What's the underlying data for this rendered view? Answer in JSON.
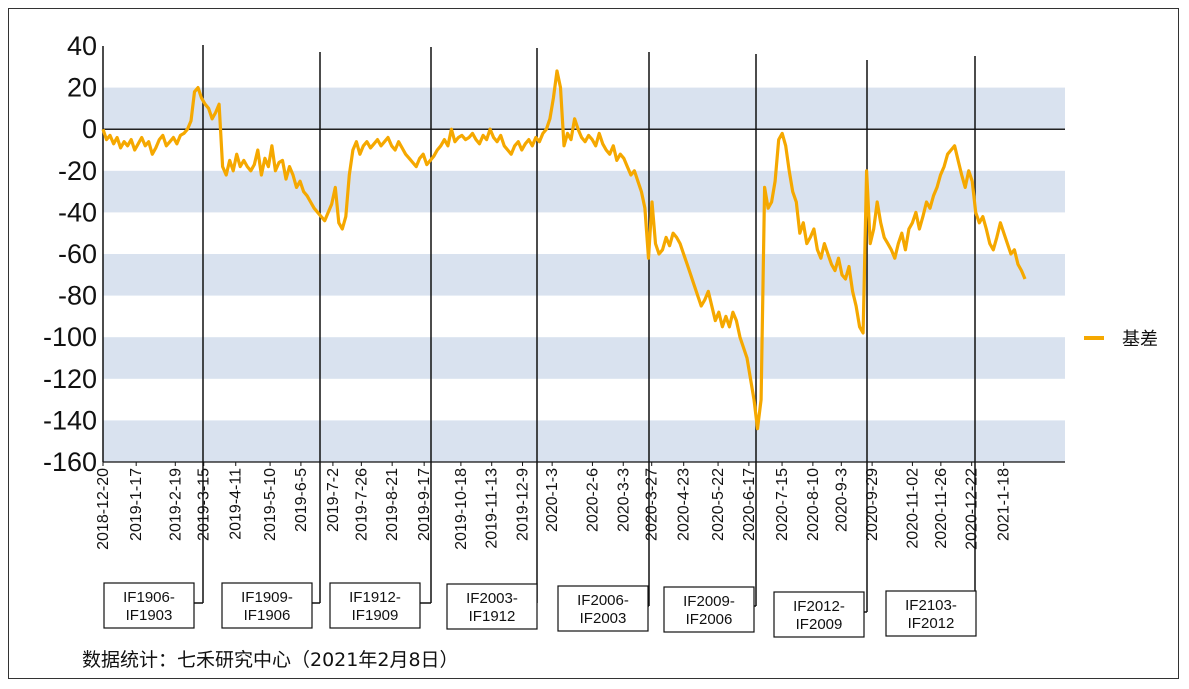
{
  "chart_data": {
    "type": "line",
    "title": "",
    "xlabel": "",
    "ylabel": "",
    "ylim": [
      -160,
      40
    ],
    "yticks": [
      40,
      20,
      0,
      -20,
      -40,
      -60,
      -80,
      -100,
      -120,
      -140,
      -160
    ],
    "grid": "alternating horizontal bands",
    "legend_position": "right",
    "line_color": "#F5A800",
    "band_color": "#D9E2EF",
    "x_tick_labels": [
      "2018-12-20",
      "2019-1-17",
      "2019-2-19",
      "2019-3-15",
      "2019-4-11",
      "2019-5-10",
      "2019-6-5",
      "2019-7-2",
      "2019-7-26",
      "2019-8-21",
      "2019-9-17",
      "2019-10-18",
      "2019-11-13",
      "2019-12-9",
      "2020-1-3",
      "2020-2-6",
      "2020-3-3",
      "2020-3-27",
      "2020-4-23",
      "2020-5-22",
      "2020-6-17",
      "2020-7-15",
      "2020-8-10",
      "2020-9-3",
      "2020-9-29",
      "2020-11-02",
      "2020-11-26",
      "2020-12-22",
      "2021-1-18"
    ],
    "series": [
      {
        "name": "基差",
        "x_range": [
          "2018-12-20",
          "2021-2-5"
        ],
        "values": [
          0,
          -5,
          -3,
          -7,
          -4,
          -9,
          -6,
          -8,
          -5,
          -10,
          -7,
          -4,
          -8,
          -6,
          -12,
          -9,
          -5,
          -3,
          -8,
          -6,
          -4,
          -7,
          -3,
          -2,
          0,
          4,
          18,
          20,
          15,
          12,
          10,
          5,
          8,
          12,
          -18,
          -22,
          -15,
          -20,
          -12,
          -18,
          -15,
          -18,
          -20,
          -17,
          -10,
          -22,
          -14,
          -18,
          -8,
          -20,
          -16,
          -15,
          -24,
          -18,
          -22,
          -28,
          -25,
          -30,
          -32,
          -35,
          -38,
          -40,
          -42,
          -44,
          -40,
          -36,
          -28,
          -45,
          -48,
          -42,
          -22,
          -10,
          -6,
          -12,
          -8,
          -6,
          -9,
          -7,
          -5,
          -8,
          -6,
          -4,
          -8,
          -10,
          -6,
          -9,
          -12,
          -14,
          -16,
          -18,
          -14,
          -12,
          -17,
          -15,
          -13,
          -10,
          -8,
          -5,
          -8,
          0,
          -6,
          -4,
          -3,
          -5,
          -4,
          -2,
          -5,
          -7,
          -3,
          -5,
          0,
          -4,
          -6,
          -3,
          -8,
          -10,
          -12,
          -8,
          -6,
          -10,
          -7,
          -5,
          -8,
          -4,
          -6,
          -2,
          0,
          5,
          15,
          28,
          20,
          -8,
          -2,
          -5,
          5,
          0,
          -4,
          -6,
          -3,
          -5,
          -8,
          -2,
          -7,
          -10,
          -12,
          -8,
          -15,
          -12,
          -14,
          -18,
          -22,
          -20,
          -25,
          -30,
          -38,
          -62,
          -35,
          -55,
          -60,
          -58,
          -52,
          -56,
          -50,
          -52,
          -55,
          -60,
          -65,
          -70,
          -75,
          -80,
          -85,
          -82,
          -78,
          -85,
          -92,
          -88,
          -95,
          -90,
          -95,
          -88,
          -92,
          -100,
          -105,
          -110,
          -120,
          -130,
          -144,
          -130,
          -28,
          -38,
          -35,
          -25,
          -5,
          -2,
          -8,
          -20,
          -30,
          -35,
          -50,
          -45,
          -55,
          -52,
          -48,
          -58,
          -62,
          -55,
          -60,
          -65,
          -68,
          -62,
          -70,
          -72,
          -66,
          -78,
          -85,
          -95,
          -98,
          -20,
          -55,
          -48,
          -35,
          -45,
          -52,
          -55,
          -58,
          -62,
          -55,
          -50,
          -58,
          -48,
          -45,
          -40,
          -48,
          -42,
          -35,
          -38,
          -32,
          -28,
          -22,
          -18,
          -12,
          -10,
          -8,
          -15,
          -22,
          -28,
          -20,
          -25,
          -40,
          -45,
          -42,
          -48,
          -55,
          -58,
          -52,
          -45,
          -50,
          -55,
          -60,
          -58,
          -65,
          -68,
          -72
        ]
      }
    ],
    "rollovers": [
      {
        "label_top": "IF1906-",
        "label_bottom": "IF1903"
      },
      {
        "label_top": "IF1909-",
        "label_bottom": "IF1906"
      },
      {
        "label_top": "IF1912-",
        "label_bottom": "IF1909"
      },
      {
        "label_top": "IF2003-",
        "label_bottom": "IF1912"
      },
      {
        "label_top": "IF2006-",
        "label_bottom": "IF2003"
      },
      {
        "label_top": "IF2009-",
        "label_bottom": "IF2006"
      },
      {
        "label_top": "IF2012-",
        "label_bottom": "IF2009"
      },
      {
        "label_top": "IF2103-",
        "label_bottom": "IF2012"
      }
    ]
  },
  "footer": {
    "source": "数据统计：七禾研究中心（2021年2月8日）"
  }
}
